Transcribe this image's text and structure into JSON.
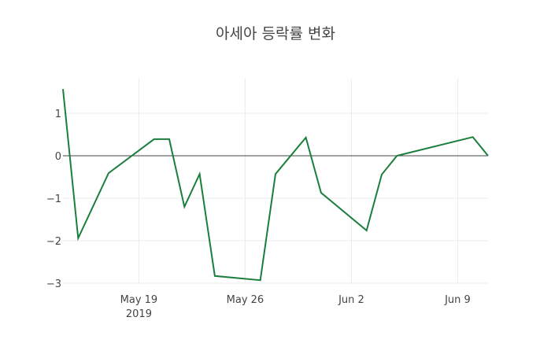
{
  "chart_data": {
    "type": "line",
    "title": "아세아 등락률 변화",
    "xlabel": "",
    "ylabel": "",
    "x": [
      "2019-05-14",
      "2019-05-15",
      "2019-05-17",
      "2019-05-20",
      "2019-05-21",
      "2019-05-22",
      "2019-05-23",
      "2019-05-24",
      "2019-05-27",
      "2019-05-28",
      "2019-05-30",
      "2019-05-31",
      "2019-06-03",
      "2019-06-04",
      "2019-06-05",
      "2019-06-10",
      "2019-06-11"
    ],
    "series": [
      {
        "name": "등락률",
        "color": "#1a7f3c",
        "values": [
          1.57,
          -1.94,
          -0.41,
          0.39,
          0.39,
          -1.2,
          -0.43,
          -2.83,
          -2.93,
          -0.43,
          0.43,
          -0.87,
          -1.76,
          -0.44,
          0.0,
          0.44,
          0.0
        ]
      }
    ],
    "x_ticks": [
      {
        "label": "May 19",
        "sublabel": "2019",
        "date": "2019-05-19"
      },
      {
        "label": "May 26",
        "sublabel": "",
        "date": "2019-05-26"
      },
      {
        "label": "Jun 2",
        "sublabel": "",
        "date": "2019-06-02"
      },
      {
        "label": "Jun 9",
        "sublabel": "",
        "date": "2019-06-09"
      }
    ],
    "y_ticks": [
      1,
      0,
      -1,
      -2,
      -3
    ],
    "y_tick_labels": [
      "1",
      "0",
      "−1",
      "−2",
      "−3"
    ],
    "ylim": [
      -3.1,
      1.65
    ],
    "xlim": [
      "2019-05-14",
      "2019-06-11"
    ],
    "grid": true,
    "zero_line": true,
    "legend": "none"
  }
}
